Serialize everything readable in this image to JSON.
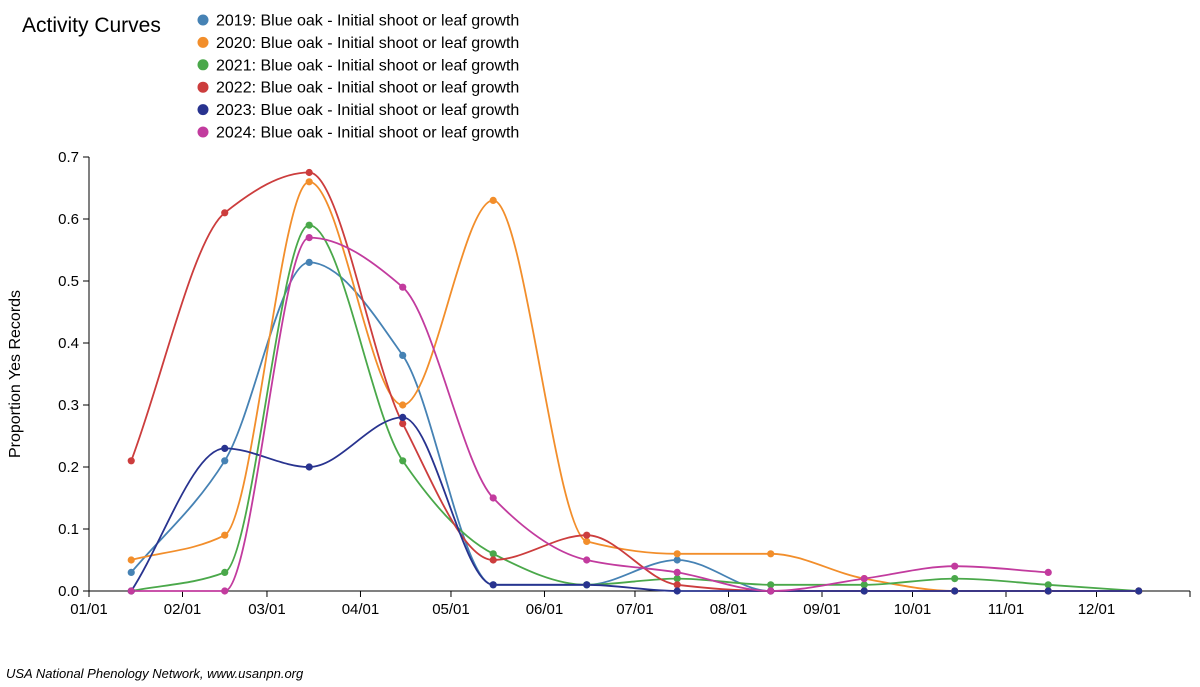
{
  "chart_data": {
    "type": "line",
    "title": "Activity Curves",
    "xlabel": "",
    "ylabel": "Proportion Yes Records",
    "ylim": [
      0,
      0.7
    ],
    "yticks": [
      "0.0",
      "0.1",
      "0.2",
      "0.3",
      "0.4",
      "0.5",
      "0.6",
      "0.7"
    ],
    "xticks": [
      "01/01",
      "02/01",
      "03/01",
      "04/01",
      "05/01",
      "06/01",
      "07/01",
      "08/01",
      "09/01",
      "10/01",
      "11/01",
      "12/01"
    ],
    "x": [
      "01/15",
      "02/15",
      "03/15",
      "04/15",
      "05/15",
      "06/15",
      "07/15",
      "08/15",
      "09/15",
      "10/15",
      "11/15",
      "12/15"
    ],
    "legend_position": "top-left",
    "series": [
      {
        "name": "2019: Blue oak - Initial shoot or leaf growth",
        "color": "#4682b4",
        "values": [
          0.03,
          0.21,
          0.53,
          0.38,
          0.01,
          0.01,
          0.05,
          0.0,
          0.0,
          0.0,
          0.0,
          0.0
        ]
      },
      {
        "name": "2020: Blue oak - Initial shoot or leaf growth",
        "color": "#f28e2b",
        "values": [
          0.05,
          0.09,
          0.66,
          0.3,
          0.63,
          0.08,
          0.06,
          0.06,
          0.02,
          0.0,
          0.0,
          0.0
        ]
      },
      {
        "name": "2021: Blue oak - Initial shoot or leaf growth",
        "color": "#4aa84a",
        "values": [
          0.0,
          0.03,
          0.59,
          0.21,
          0.06,
          0.01,
          0.02,
          0.01,
          0.01,
          0.02,
          0.01,
          0.0
        ]
      },
      {
        "name": "2022: Blue oak - Initial shoot or leaf growth",
        "color": "#cc3d3d",
        "values": [
          0.21,
          0.61,
          0.675,
          0.27,
          0.05,
          0.09,
          0.01,
          0.0,
          0.0,
          0.0,
          0.0,
          0.0
        ]
      },
      {
        "name": "2023: Blue oak - Initial shoot or leaf growth",
        "color": "#28338f",
        "values": [
          0.0,
          0.23,
          0.2,
          0.28,
          0.01,
          0.01,
          0.0,
          0.0,
          0.0,
          0.0,
          0.0,
          0.0
        ]
      },
      {
        "name": "2024: Blue oak - Initial shoot or leaf growth",
        "color": "#c23b9e",
        "values": [
          0.0,
          0.0,
          0.57,
          0.49,
          0.15,
          0.05,
          0.03,
          0.0,
          0.02,
          0.04,
          0.03,
          null
        ]
      }
    ]
  },
  "footer": "USA National Phenology Network, www.usanpn.org"
}
